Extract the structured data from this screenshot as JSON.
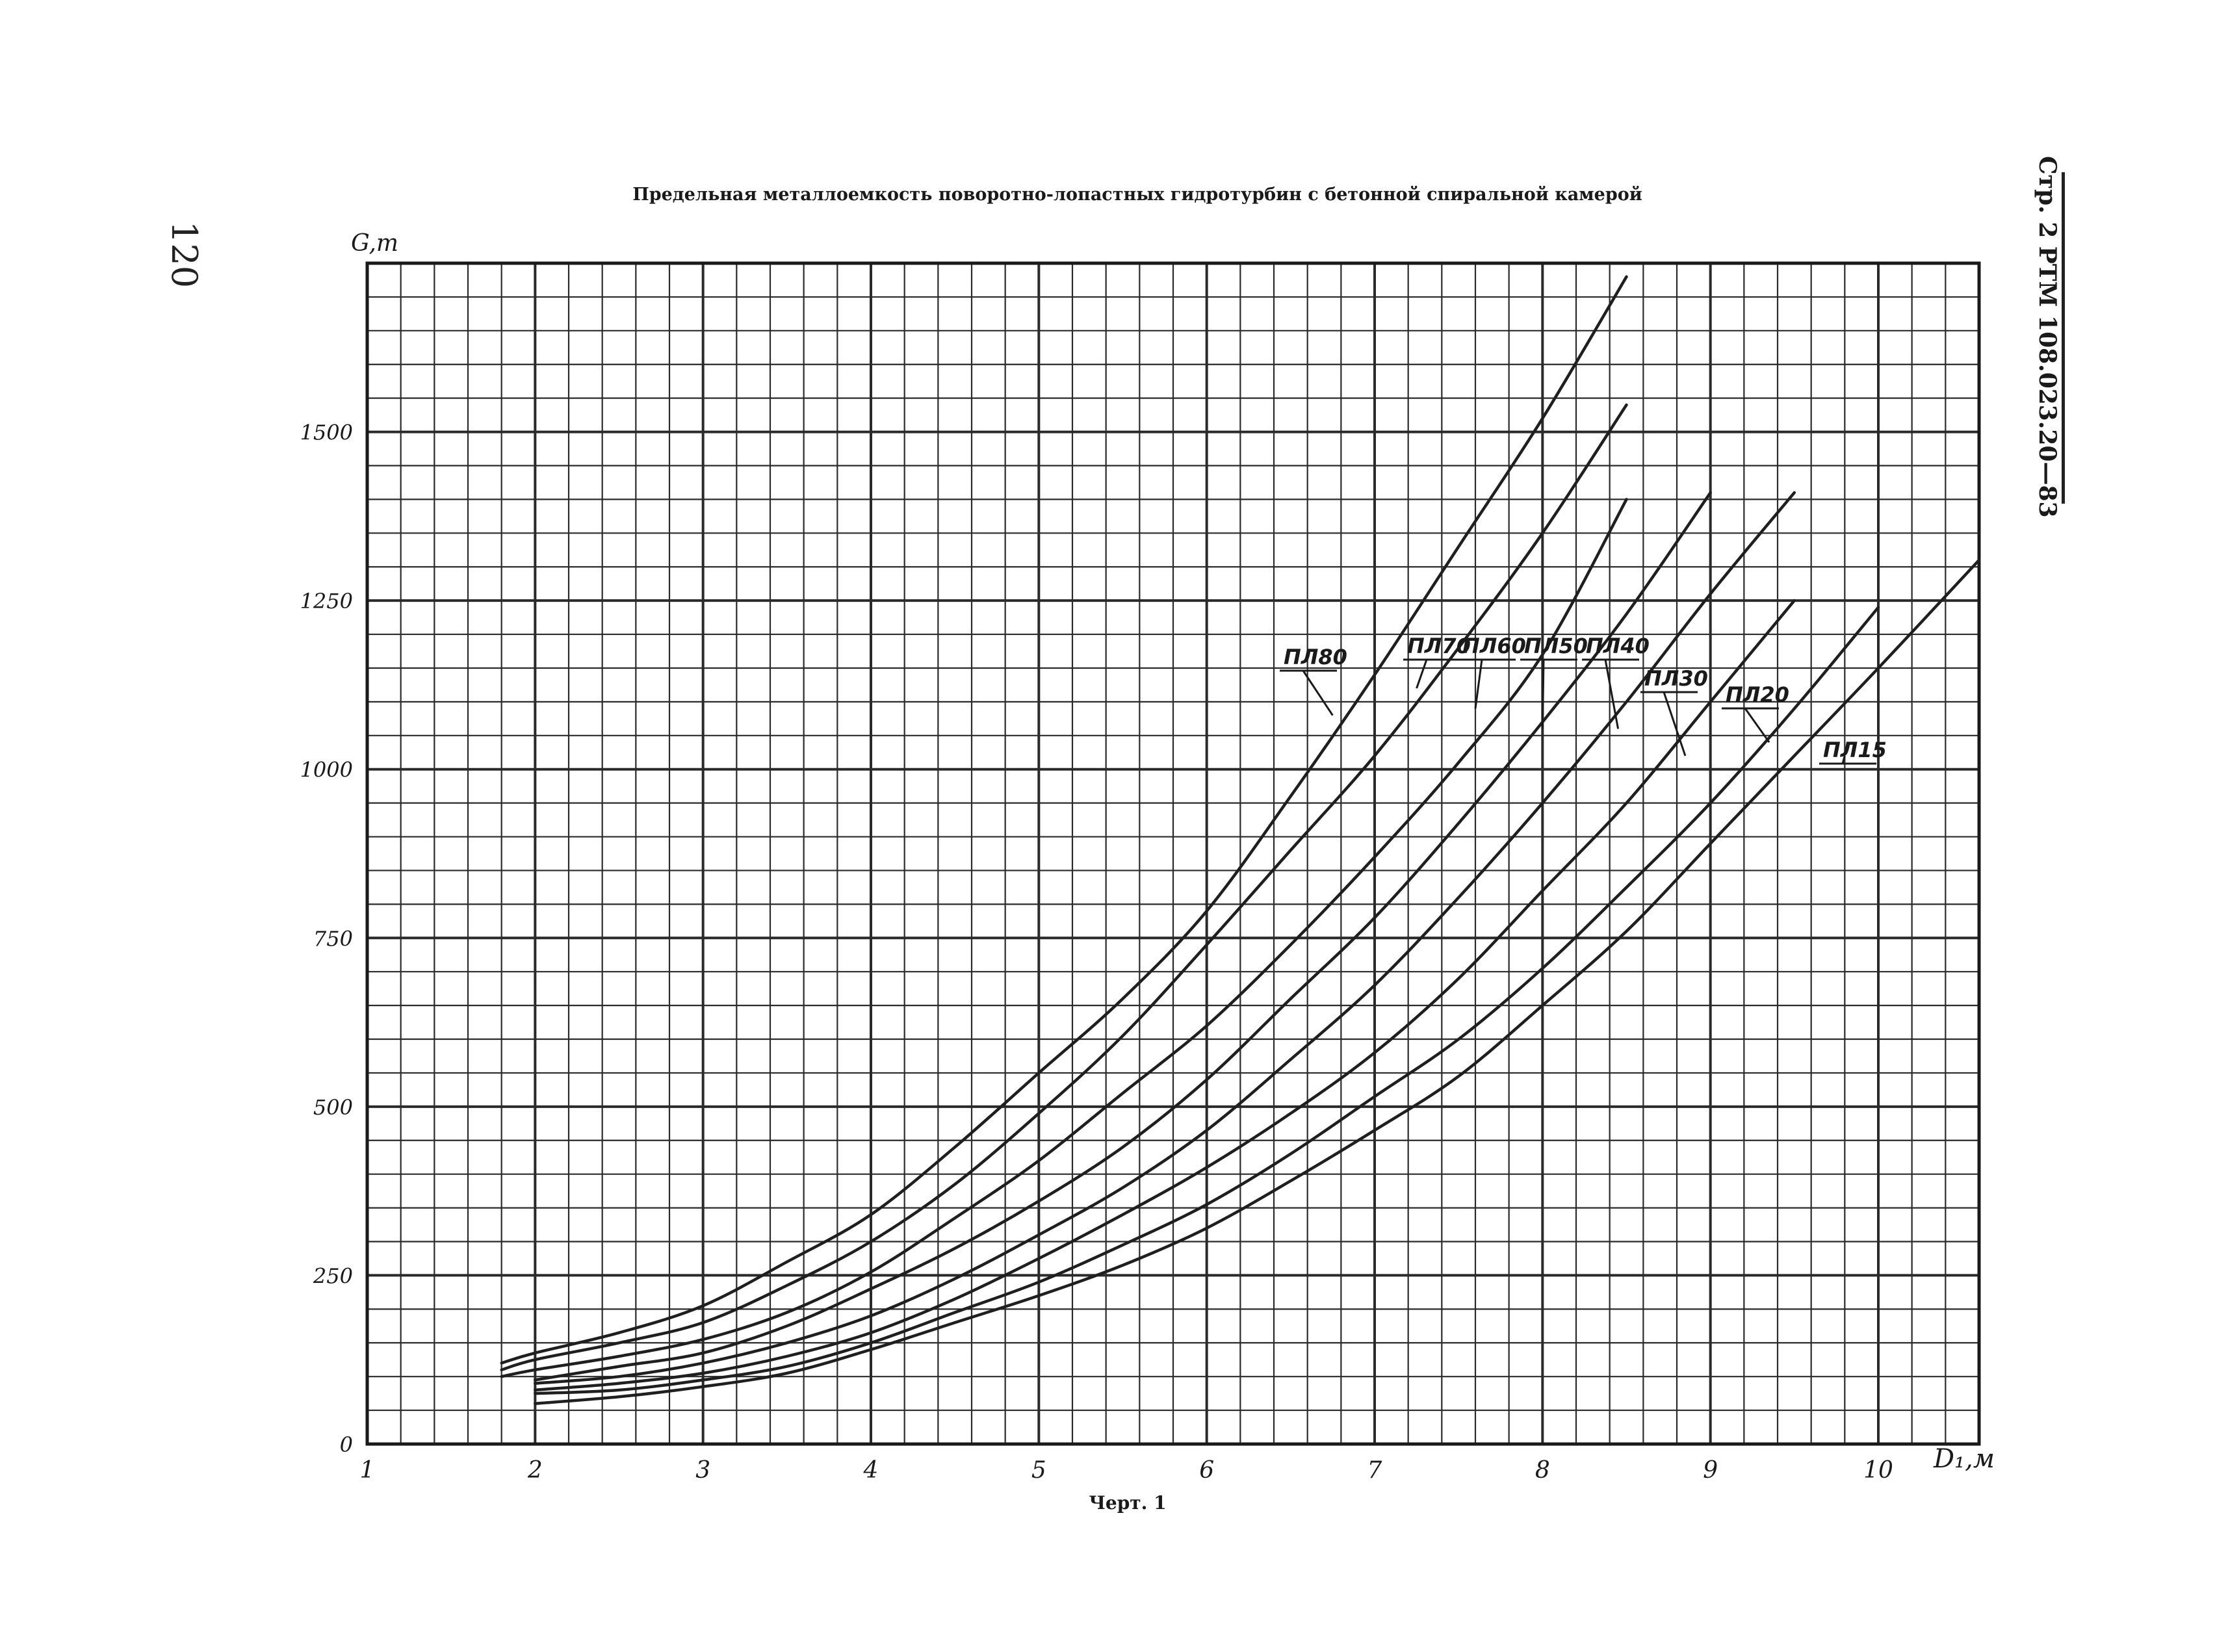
{
  "page_number": "120",
  "side_stamp": "Стр. 2  РТМ 108.023.20—83",
  "caption": "Черт. 1",
  "chart_data": {
    "type": "line",
    "title": "Предельная металлоемкость поворотно-лопастных гидротурбин с бетонной спиральной камерой",
    "xlabel": "D₁,м",
    "ylabel": "G,т",
    "xlim": [
      1,
      10.6
    ],
    "ylim": [
      0,
      1750
    ],
    "x_ticks": [
      1,
      2,
      3,
      4,
      5,
      6,
      7,
      8,
      9,
      10
    ],
    "x_tick_labels": [
      "1",
      "2",
      "3",
      "4",
      "5",
      "6",
      "7",
      "8",
      "9",
      "10"
    ],
    "y_ticks": [
      0,
      250,
      500,
      750,
      1000,
      1250,
      1500
    ],
    "y_tick_labels": [
      "0",
      "250",
      "500",
      "750",
      "1000",
      "1250",
      "1500"
    ],
    "grid": true,
    "line_color": "#1f1f1f",
    "series": [
      {
        "name": "ПЛ80",
        "x": [
          1.8,
          2.0,
          2.5,
          3.0,
          3.5,
          4.0,
          4.5,
          5.0,
          5.5,
          6.0,
          6.5,
          7.0,
          7.5,
          8.0,
          8.5
        ],
        "values": [
          120,
          135,
          165,
          205,
          270,
          340,
          440,
          550,
          660,
          790,
          960,
          1140,
          1330,
          1520,
          1730
        ]
      },
      {
        "name": "ПЛ70",
        "x": [
          1.8,
          2.0,
          2.5,
          3.0,
          3.5,
          4.0,
          4.5,
          5.0,
          5.5,
          6.0,
          6.5,
          7.0,
          7.5,
          8.0,
          8.5
        ],
        "values": [
          110,
          125,
          150,
          180,
          235,
          300,
          385,
          490,
          605,
          740,
          880,
          1020,
          1180,
          1350,
          1540
        ]
      },
      {
        "name": "ПЛ60",
        "x": [
          1.8,
          2.0,
          2.5,
          3.0,
          3.5,
          4.0,
          4.5,
          5.0,
          5.5,
          6.0,
          6.5,
          7.0,
          7.5,
          8.0,
          8.5
        ],
        "values": [
          100,
          110,
          130,
          155,
          195,
          255,
          335,
          420,
          520,
          620,
          740,
          870,
          1010,
          1170,
          1400
        ]
      },
      {
        "name": "ПЛ50",
        "x": [
          2.0,
          2.5,
          3.0,
          3.5,
          4.0,
          4.5,
          5.0,
          5.5,
          6.0,
          6.5,
          7.0,
          7.5,
          8.0,
          8.5,
          9.0
        ],
        "values": [
          95,
          115,
          135,
          175,
          230,
          290,
          360,
          440,
          540,
          660,
          780,
          920,
          1070,
          1230,
          1410
        ]
      },
      {
        "name": "ПЛ40",
        "x": [
          2.0,
          2.5,
          3.0,
          3.5,
          4.0,
          4.5,
          5.0,
          5.5,
          6.0,
          6.5,
          7.0,
          7.5,
          8.0,
          8.5,
          9.0,
          9.5
        ],
        "values": [
          90,
          100,
          120,
          150,
          190,
          245,
          310,
          380,
          465,
          570,
          680,
          810,
          950,
          1100,
          1260,
          1410
        ]
      },
      {
        "name": "ПЛ30",
        "x": [
          2.0,
          2.5,
          3.0,
          3.5,
          4.0,
          4.5,
          5.0,
          5.5,
          6.0,
          6.5,
          7.0,
          7.5,
          8.0,
          8.5,
          9.0,
          9.5
        ],
        "values": [
          80,
          90,
          105,
          130,
          165,
          215,
          275,
          340,
          410,
          490,
          580,
          690,
          820,
          950,
          1100,
          1250
        ]
      },
      {
        "name": "ПЛ20",
        "x": [
          2.0,
          2.5,
          3.0,
          3.5,
          4.0,
          4.5,
          5.0,
          5.5,
          6.0,
          6.5,
          7.0,
          7.5,
          8.0,
          8.5,
          9.0,
          9.5,
          10.0
        ],
        "values": [
          75,
          80,
          95,
          115,
          150,
          195,
          240,
          295,
          355,
          430,
          515,
          600,
          705,
          825,
          950,
          1090,
          1240
        ]
      },
      {
        "name": "ПЛ15",
        "x": [
          2.0,
          2.5,
          3.0,
          3.5,
          4.0,
          4.5,
          5.0,
          5.5,
          6.0,
          6.5,
          7.0,
          7.5,
          8.0,
          8.5,
          9.0,
          9.5,
          10.0,
          10.6
        ],
        "values": [
          60,
          70,
          85,
          105,
          140,
          180,
          220,
          265,
          320,
          390,
          465,
          545,
          650,
          760,
          890,
          1020,
          1150,
          1310
        ]
      }
    ],
    "annotations": [
      "ПЛ80",
      "ПЛ70",
      "ПЛ60",
      "ПЛ50",
      "ПЛ40",
      "ПЛ30",
      "ПЛ20",
      "ПЛ15"
    ]
  }
}
